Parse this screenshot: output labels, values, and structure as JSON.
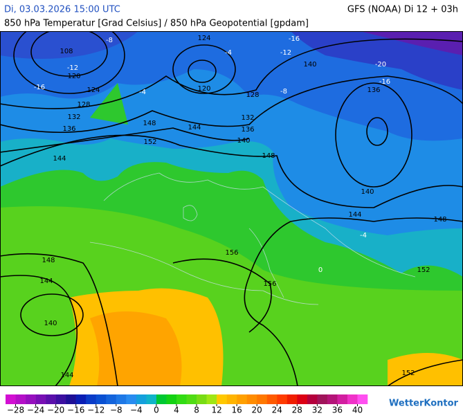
{
  "header": {
    "left": "Di, 03.03.2026 15:00 UTC",
    "right": "GFS (NOAA) Di 12 + 03h",
    "subtitle": "850 hPa Temperatur [Grad Celsius] / 850 hPa Geopotential [gpdam]"
  },
  "map": {
    "contour_labels": [
      124,
      108,
      120,
      124,
      128,
      132,
      136,
      144,
      148,
      152,
      144,
      120,
      128,
      132,
      136,
      140,
      148,
      140,
      136,
      -20,
      -16,
      -16,
      -12,
      140,
      144,
      148,
      152,
      156,
      156,
      148,
      144,
      140,
      144,
      152,
      -16,
      -4,
      -8,
      -12,
      -8,
      -4,
      0,
      -4
    ]
  },
  "colorbar": {
    "lim": [
      -30,
      42
    ],
    "levels": [
      -30,
      -28,
      -26,
      -24,
      -22,
      -20,
      -18,
      -16,
      -14,
      -12,
      -10,
      -8,
      -6,
      -4,
      -2,
      0,
      2,
      4,
      6,
      8,
      10,
      12,
      14,
      16,
      18,
      20,
      22,
      24,
      26,
      28,
      30,
      32,
      34,
      36,
      38,
      40
    ],
    "colors": [
      "#d20fd2",
      "#b40fc8",
      "#960fbe",
      "#780fb4",
      "#5a0faa",
      "#3c0fa0",
      "#1e0f96",
      "#0a1eb4",
      "#0a3cc8",
      "#0a50d2",
      "#1464dc",
      "#1e78e6",
      "#288cf0",
      "#14a0dc",
      "#10b4c8",
      "#00c832",
      "#14d214",
      "#32dc14",
      "#50dc14",
      "#78dc14",
      "#a0e614",
      "#ffc800",
      "#ffb400",
      "#ffa000",
      "#ff8c00",
      "#ff7800",
      "#ff5a00",
      "#ff3c00",
      "#f01e00",
      "#dc0014",
      "#b4003c",
      "#a0145a",
      "#b41478",
      "#d21ea0",
      "#f032c8",
      "#ff50f0"
    ],
    "ticks": [
      {
        "value": -28,
        "label": "−28"
      },
      {
        "value": -24,
        "label": "−24"
      },
      {
        "value": -20,
        "label": "−20"
      },
      {
        "value": -16,
        "label": "−16"
      },
      {
        "value": -12,
        "label": "−12"
      },
      {
        "value": -8,
        "label": "−8"
      },
      {
        "value": -4,
        "label": "−4"
      },
      0,
      4,
      8,
      12,
      16,
      20,
      24,
      28,
      32,
      36,
      40
    ]
  },
  "logo": "WetterKontor"
}
